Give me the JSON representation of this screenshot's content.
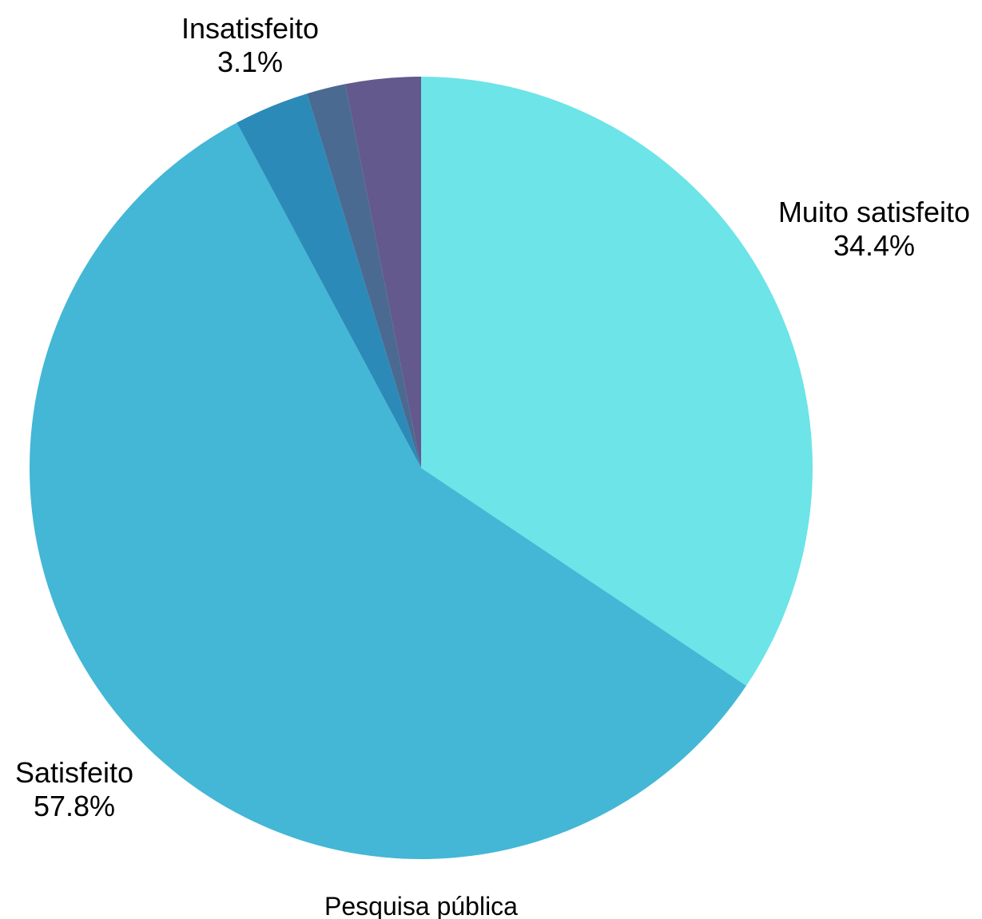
{
  "chart_data": {
    "type": "pie",
    "title": "",
    "xlabel": "Pesquisa pública",
    "slices": [
      {
        "name": "Muito satisfeito",
        "value": 34.4,
        "value_label": "34.4%",
        "color": "#6ce4e8",
        "labeled": true
      },
      {
        "name": "Satisfeito",
        "value": 57.8,
        "value_label": "57.8%",
        "color": "#43b7d5",
        "labeled": true
      },
      {
        "name": "",
        "value": 3.1,
        "value_label": "",
        "color": "#2c8ab8",
        "labeled": false
      },
      {
        "name": "",
        "value": 1.6,
        "value_label": "",
        "color": "#4a6a92",
        "labeled": false
      },
      {
        "name": "Insatisfeito",
        "value": 3.1,
        "value_label": "3.1%",
        "color": "#63598c",
        "labeled": true
      }
    ]
  }
}
